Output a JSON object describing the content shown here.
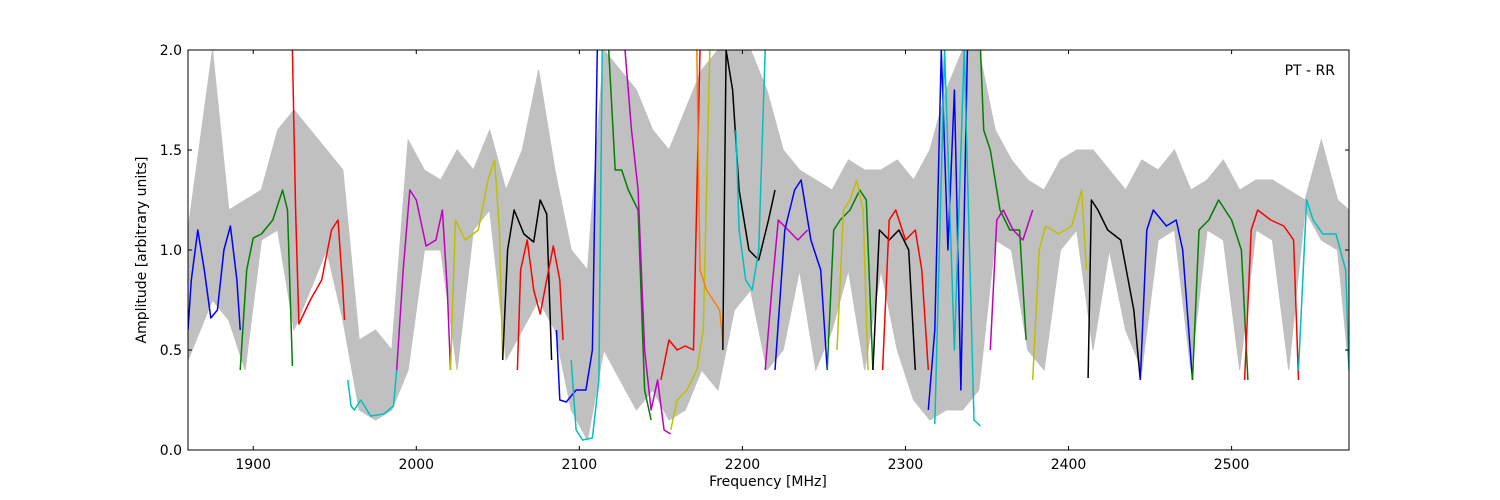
{
  "chart_data": {
    "type": "line",
    "title": "",
    "annotation": "PT - RR",
    "xlabel": "Frequency [MHz]",
    "ylabel": "Amplitude [arbitrary units]",
    "xlim": [
      1860,
      2572
    ],
    "ylim": [
      0.0,
      2.0
    ],
    "xticks": [
      1900,
      2000,
      2100,
      2200,
      2300,
      2400,
      2500
    ],
    "yticks": [
      0.0,
      0.5,
      1.0,
      1.5,
      2.0
    ],
    "xtick_labels": [
      "1900",
      "2000",
      "2100",
      "2200",
      "2300",
      "2400",
      "2500"
    ],
    "ytick_labels": [
      "0.0",
      "0.5",
      "1.0",
      "1.5",
      "2.0"
    ],
    "grid": false,
    "envelope_color": "#c0c0c0",
    "envelope": {
      "x": [
        1860,
        1875,
        1885,
        1895,
        1905,
        1915,
        1925,
        1935,
        1945,
        1955,
        1965,
        1975,
        1985,
        1995,
        2005,
        2015,
        2025,
        2035,
        2045,
        2055,
        2065,
        2075,
        2085,
        2095,
        2105,
        2115,
        2125,
        2135,
        2145,
        2155,
        2165,
        2175,
        2185,
        2195,
        2205,
        2215,
        2225,
        2235,
        2245,
        2255,
        2265,
        2275,
        2285,
        2295,
        2305,
        2315,
        2325,
        2335,
        2345,
        2355,
        2365,
        2375,
        2385,
        2395,
        2405,
        2415,
        2425,
        2435,
        2445,
        2455,
        2465,
        2475,
        2485,
        2495,
        2505,
        2515,
        2525,
        2535,
        2545,
        2555,
        2565,
        2572
      ],
      "upper": [
        1.1,
        2.0,
        1.2,
        1.25,
        1.3,
        1.6,
        1.7,
        1.6,
        1.5,
        1.4,
        0.55,
        0.6,
        0.5,
        1.55,
        1.4,
        1.35,
        1.5,
        1.4,
        1.6,
        1.3,
        1.5,
        1.9,
        1.4,
        1.0,
        0.9,
        2.0,
        1.9,
        1.8,
        1.6,
        1.5,
        1.7,
        1.9,
        2.0,
        2.0,
        2.0,
        1.8,
        1.5,
        1.4,
        1.35,
        1.3,
        1.45,
        1.4,
        1.4,
        1.45,
        1.35,
        1.5,
        1.8,
        2.0,
        2.0,
        1.6,
        1.45,
        1.35,
        1.3,
        1.45,
        1.5,
        1.5,
        1.4,
        1.3,
        1.45,
        1.4,
        1.5,
        1.3,
        1.35,
        1.45,
        1.3,
        1.35,
        1.35,
        1.3,
        1.25,
        1.55,
        1.25,
        1.2
      ],
      "lower": [
        0.45,
        0.75,
        0.65,
        0.4,
        1.05,
        1.1,
        0.6,
        0.8,
        1.0,
        0.65,
        0.2,
        0.15,
        0.2,
        0.4,
        1.0,
        1.0,
        0.4,
        1.1,
        1.2,
        0.45,
        0.6,
        0.75,
        0.6,
        0.2,
        0.05,
        0.5,
        0.35,
        0.2,
        0.3,
        0.15,
        0.2,
        0.4,
        0.3,
        0.7,
        0.8,
        0.4,
        0.5,
        0.9,
        0.4,
        0.6,
        0.9,
        0.4,
        0.9,
        0.5,
        0.25,
        0.15,
        0.2,
        0.2,
        0.3,
        1.05,
        1.0,
        0.5,
        0.4,
        1.0,
        1.1,
        0.5,
        1.0,
        0.6,
        0.4,
        1.05,
        1.1,
        0.4,
        1.1,
        1.05,
        0.4,
        1.1,
        1.05,
        0.4,
        1.2,
        1.05,
        1.0,
        0.4
      ]
    },
    "series": [
      {
        "color": "#0000ff",
        "x": [
          1860,
          1862,
          1866,
          1870,
          1874,
          1878,
          1882,
          1886,
          1890,
          1892
        ],
        "y": [
          0.6,
          0.85,
          1.1,
          0.9,
          0.66,
          0.7,
          1.0,
          1.12,
          0.85,
          0.6
        ]
      },
      {
        "color": "#008000",
        "x": [
          1892,
          1896,
          1900,
          1905,
          1912,
          1918,
          1921,
          1924
        ],
        "y": [
          0.4,
          0.9,
          1.06,
          1.08,
          1.15,
          1.3,
          1.2,
          0.42
        ]
      },
      {
        "color": "#ff0000",
        "x": [
          1924,
          1926,
          1928,
          1935,
          1942,
          1948,
          1952,
          1955,
          1956
        ],
        "y": [
          2.0,
          1.2,
          0.63,
          0.75,
          0.85,
          1.1,
          1.15,
          0.8,
          0.65
        ]
      },
      {
        "color": "#00bfbf",
        "x": [
          1958,
          1960,
          1962,
          1966,
          1972,
          1980,
          1986,
          1988
        ],
        "y": [
          0.35,
          0.22,
          0.2,
          0.25,
          0.17,
          0.18,
          0.22,
          0.4
        ]
      },
      {
        "color": "#bf00bf",
        "x": [
          1988,
          1992,
          1996,
          2000,
          2006,
          2012,
          2016,
          2019,
          2021
        ],
        "y": [
          0.4,
          0.9,
          1.3,
          1.25,
          1.02,
          1.05,
          1.2,
          0.8,
          0.4
        ]
      },
      {
        "color": "#bfbf00",
        "x": [
          2021,
          2024,
          2030,
          2038,
          2044,
          2048,
          2051,
          2053
        ],
        "y": [
          0.4,
          1.15,
          1.05,
          1.1,
          1.35,
          1.45,
          1.1,
          0.45
        ]
      },
      {
        "color": "#000000",
        "x": [
          2053,
          2056,
          2060,
          2066,
          2072,
          2076,
          2080,
          2083
        ],
        "y": [
          0.45,
          1.0,
          1.2,
          1.08,
          1.04,
          1.25,
          1.18,
          0.45
        ]
      },
      {
        "color": "#ff0000",
        "x": [
          2062,
          2064,
          2068,
          2072,
          2076,
          2080,
          2084,
          2088,
          2090
        ],
        "y": [
          0.4,
          0.9,
          1.05,
          0.8,
          0.68,
          0.85,
          1.02,
          0.85,
          0.55
        ]
      },
      {
        "color": "#0000ff",
        "x": [
          2086,
          2088,
          2092,
          2098,
          2104,
          2108,
          2111
        ],
        "y": [
          0.6,
          0.25,
          0.24,
          0.3,
          0.3,
          0.5,
          2.0
        ]
      },
      {
        "color": "#00bfbf",
        "x": [
          2095,
          2098,
          2102,
          2108,
          2112,
          2114
        ],
        "y": [
          0.45,
          0.1,
          0.05,
          0.06,
          0.35,
          2.0
        ]
      },
      {
        "color": "#008000",
        "x": [
          2118,
          2122,
          2126,
          2130,
          2136,
          2140,
          2144
        ],
        "y": [
          2.0,
          1.4,
          1.4,
          1.3,
          1.2,
          0.3,
          0.15
        ]
      },
      {
        "color": "#bf00bf",
        "x": [
          2128,
          2132,
          2136,
          2140,
          2144,
          2148,
          2152,
          2156
        ],
        "y": [
          2.0,
          1.6,
          1.3,
          0.5,
          0.2,
          0.35,
          0.1,
          0.08
        ]
      },
      {
        "color": "#ff0000",
        "x": [
          2150,
          2155,
          2160,
          2165,
          2170,
          2174
        ],
        "y": [
          0.35,
          0.55,
          0.5,
          0.52,
          0.5,
          2.0
        ]
      },
      {
        "color": "#bfbf00",
        "x": [
          2156,
          2160,
          2166,
          2172,
          2176,
          2180
        ],
        "y": [
          0.1,
          0.25,
          0.3,
          0.4,
          0.6,
          2.0
        ]
      },
      {
        "color": "#ff8000",
        "x": [
          2172,
          2174,
          2178,
          2182,
          2186,
          2188
        ],
        "y": [
          2.0,
          0.9,
          0.8,
          0.75,
          0.7,
          0.55
        ]
      },
      {
        "color": "#000000",
        "x": [
          2188,
          2190,
          2194,
          2198,
          2204,
          2210,
          2216,
          2220
        ],
        "y": [
          0.5,
          2.0,
          1.8,
          1.3,
          1.0,
          0.95,
          1.15,
          1.3
        ]
      },
      {
        "color": "#00bfbf",
        "x": [
          2196,
          2198,
          2202,
          2206,
          2210,
          2214
        ],
        "y": [
          1.6,
          1.1,
          0.85,
          0.8,
          1.0,
          2.0
        ]
      },
      {
        "color": "#bf00bf",
        "x": [
          2214,
          2218,
          2222,
          2228,
          2234,
          2240
        ],
        "y": [
          0.4,
          0.8,
          1.15,
          1.1,
          1.05,
          1.1
        ]
      },
      {
        "color": "#0000ff",
        "x": [
          2220,
          2226,
          2232,
          2236,
          2242,
          2248,
          2252
        ],
        "y": [
          0.4,
          1.1,
          1.3,
          1.35,
          1.05,
          0.9,
          0.4
        ]
      },
      {
        "color": "#008000",
        "x": [
          2252,
          2256,
          2260,
          2266,
          2272,
          2276,
          2280
        ],
        "y": [
          0.4,
          1.1,
          1.15,
          1.2,
          1.3,
          1.25,
          0.4
        ]
      },
      {
        "color": "#bfbf00",
        "x": [
          2258,
          2262,
          2266,
          2270,
          2274,
          2277
        ],
        "y": [
          0.5,
          1.2,
          1.25,
          1.35,
          1.2,
          0.4
        ]
      },
      {
        "color": "#000000",
        "x": [
          2280,
          2284,
          2290,
          2296,
          2302,
          2306
        ],
        "y": [
          0.4,
          1.1,
          1.05,
          1.1,
          1.0,
          0.4
        ]
      },
      {
        "color": "#ff0000",
        "x": [
          2286,
          2290,
          2294,
          2300,
          2306,
          2310,
          2314
        ],
        "y": [
          0.4,
          1.15,
          1.2,
          1.05,
          1.1,
          0.9,
          0.4
        ]
      },
      {
        "color": "#0000ff",
        "x": [
          2314,
          2318,
          2322,
          2326,
          2330,
          2334,
          2338
        ],
        "y": [
          0.2,
          0.6,
          2.0,
          1.0,
          1.8,
          0.3,
          2.0
        ]
      },
      {
        "color": "#00bfbf",
        "x": [
          2318,
          2324,
          2330,
          2336,
          2342,
          2346
        ],
        "y": [
          0.13,
          2.0,
          0.5,
          2.0,
          0.15,
          0.12
        ]
      },
      {
        "color": "#008000",
        "x": [
          2346,
          2348,
          2352,
          2358,
          2364,
          2370,
          2374
        ],
        "y": [
          2.0,
          1.6,
          1.5,
          1.2,
          1.1,
          1.1,
          0.55
        ]
      },
      {
        "color": "#bf00bf",
        "x": [
          2352,
          2356,
          2360,
          2366,
          2372,
          2378
        ],
        "y": [
          0.5,
          1.15,
          1.2,
          1.1,
          1.05,
          1.2
        ]
      },
      {
        "color": "#bfbf00",
        "x": [
          2378,
          2382,
          2386,
          2394,
          2402,
          2408,
          2411
        ],
        "y": [
          0.35,
          1.0,
          1.12,
          1.08,
          1.12,
          1.3,
          0.9
        ]
      },
      {
        "color": "#000000",
        "x": [
          2412,
          2414,
          2418,
          2424,
          2432,
          2440,
          2444
        ],
        "y": [
          0.36,
          1.25,
          1.2,
          1.1,
          1.05,
          0.7,
          0.35
        ]
      },
      {
        "color": "#0000ff",
        "x": [
          2444,
          2448,
          2452,
          2460,
          2466,
          2470,
          2476
        ],
        "y": [
          0.35,
          1.1,
          1.2,
          1.12,
          1.15,
          1.0,
          0.35
        ]
      },
      {
        "color": "#008000",
        "x": [
          2476,
          2480,
          2486,
          2492,
          2500,
          2506,
          2510
        ],
        "y": [
          0.35,
          1.1,
          1.15,
          1.25,
          1.15,
          1.0,
          0.35
        ]
      },
      {
        "color": "#ff0000",
        "x": [
          2508,
          2512,
          2516,
          2524,
          2532,
          2538,
          2541
        ],
        "y": [
          0.35,
          1.1,
          1.2,
          1.15,
          1.12,
          1.05,
          0.35
        ]
      },
      {
        "color": "#00bfbf",
        "x": [
          2541,
          2546,
          2550,
          2556,
          2564,
          2570,
          2572
        ],
        "y": [
          0.4,
          1.25,
          1.15,
          1.08,
          1.08,
          0.9,
          0.4
        ]
      }
    ]
  }
}
